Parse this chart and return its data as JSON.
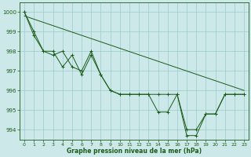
{
  "bg_color": "#cce8e8",
  "grid_color": "#99cccc",
  "line_color": "#1a5c1a",
  "marker_color": "#1a5c1a",
  "xlabel": "Graphe pression niveau de la mer (hPa)",
  "xlabel_color": "#1a5c1a",
  "tick_color": "#1a5c1a",
  "ylim": [
    993.5,
    1000.5
  ],
  "yticks": [
    994,
    995,
    996,
    997,
    998,
    999,
    1000
  ],
  "xticks": [
    0,
    1,
    2,
    3,
    4,
    5,
    6,
    7,
    8,
    9,
    10,
    11,
    12,
    13,
    14,
    15,
    16,
    17,
    18,
    19,
    20,
    21,
    22,
    23
  ],
  "series1": [
    1000.0,
    999.0,
    998.0,
    997.8,
    998.0,
    997.2,
    997.0,
    998.0,
    996.8,
    996.0,
    995.8,
    995.8,
    995.8,
    995.8,
    995.8,
    995.8,
    995.8,
    994.0,
    994.0,
    994.8,
    994.8,
    995.8,
    995.8,
    995.8
  ],
  "series2": [
    1000.0,
    998.8,
    998.0,
    998.0,
    997.2,
    997.8,
    996.8,
    997.8,
    996.8,
    996.0,
    995.8,
    995.8,
    995.8,
    995.8,
    994.9,
    994.9,
    995.8,
    993.7,
    993.7,
    994.8,
    994.8,
    995.8,
    995.8,
    995.8
  ],
  "trend_x": [
    0,
    23
  ],
  "trend_y": [
    999.8,
    996.0
  ],
  "figwidth": 3.2,
  "figheight": 2.0,
  "dpi": 100
}
